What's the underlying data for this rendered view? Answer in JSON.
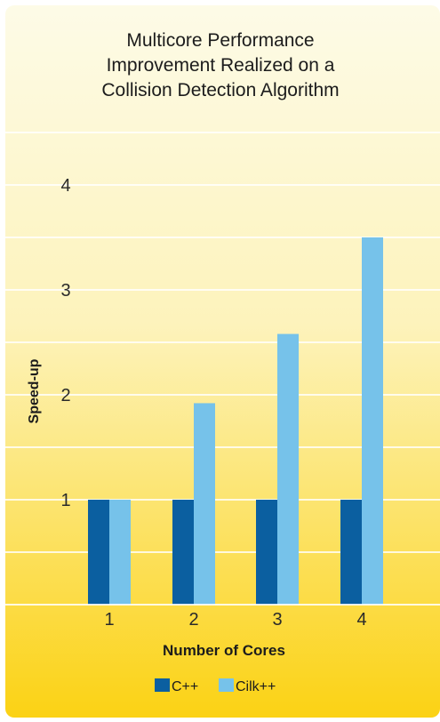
{
  "chart_data": {
    "type": "bar",
    "title": [
      "Multicore Performance",
      "Improvement Realized on a",
      "Collision Detection Algorithm"
    ],
    "xlabel": "Number of Cores",
    "ylabel": "Speed-up",
    "categories": [
      "1",
      "2",
      "3",
      "4"
    ],
    "yticks": [
      "1",
      "2",
      "3",
      "4"
    ],
    "ylim": [
      0,
      4.7
    ],
    "series": [
      {
        "name": "C++",
        "values": [
          1,
          1,
          1,
          1
        ],
        "color": "#0b5fa0"
      },
      {
        "name": "Cilk++",
        "values": [
          1,
          1.92,
          2.58,
          3.5
        ],
        "color": "#76c2ea"
      }
    ],
    "legend_position": "bottom",
    "grid": true,
    "background": {
      "top": "#fdfbe7",
      "bottom": "#fbd214"
    }
  }
}
